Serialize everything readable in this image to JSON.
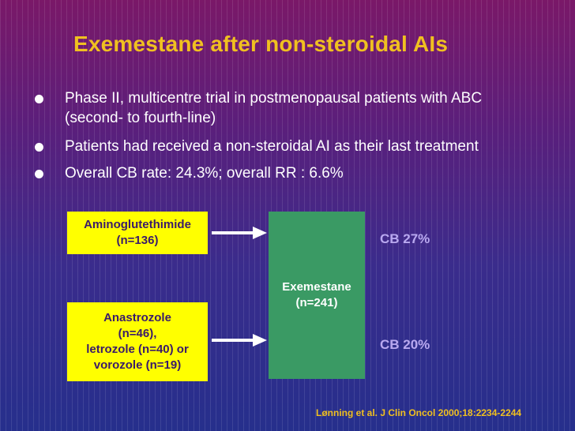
{
  "slide": {
    "title": "Exemestane after non-steroidal AIs",
    "bullets": [
      {
        "line1": "Phase II, multicentre trial in postmenopausal patients with ABC",
        "line2": "(second- to fourth-line)"
      },
      {
        "line1": "Patients had received a non-steroidal AI as their last treatment"
      },
      {
        "line1": "Overall CB rate: 24.3%; overall RR : 6.6%"
      }
    ],
    "diagram": {
      "box_top": {
        "line1": "Aminoglutethimide",
        "line2": "(n=136)"
      },
      "box_bottom": {
        "lines": [
          "Anastrozole",
          "(n=46),",
          "letrozole (n=40) or",
          "vorozole (n=19)"
        ]
      },
      "center": {
        "line1": "Exemestane",
        "line2": "(n=241)"
      },
      "cb_top": "CB 27%",
      "cb_bottom": "CB 20%"
    },
    "citation": "Lønning et al. J Clin Oncol 2000;18:2234-2244",
    "colors": {
      "title": "#f0c020",
      "box_fill": "#ffff00",
      "center_fill": "#3a9a64",
      "cb_text": "#b9a9f0",
      "arrow": "#ffffff"
    }
  }
}
